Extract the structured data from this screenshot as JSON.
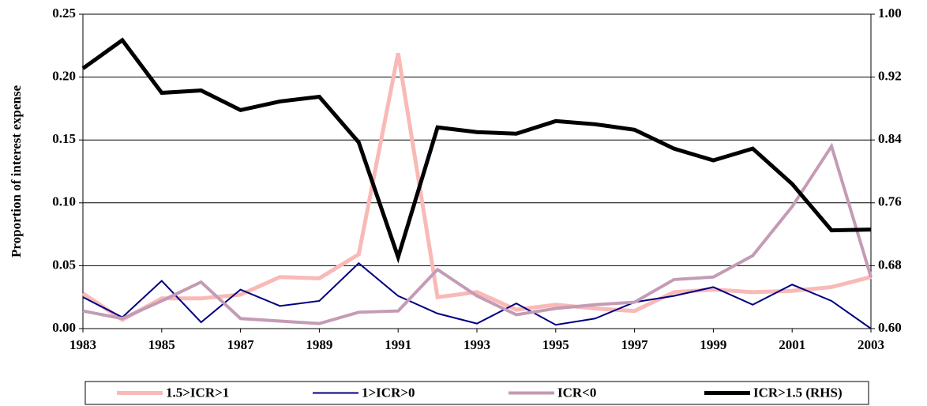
{
  "chart_data": {
    "type": "line",
    "y_label": "Proportion of interest expense",
    "x": [
      1983,
      1984,
      1985,
      1986,
      1987,
      1988,
      1989,
      1990,
      1991,
      1992,
      1993,
      1994,
      1995,
      1996,
      1997,
      1998,
      1999,
      2000,
      2001,
      2002,
      2003
    ],
    "xlim": [
      1983,
      2003
    ],
    "xticks": [
      1983,
      1985,
      1987,
      1989,
      1991,
      1993,
      1995,
      1997,
      1999,
      2001,
      2003
    ],
    "ylim": [
      0,
      0.25
    ],
    "yticks": [
      {
        "value": 0,
        "label": "0.00"
      },
      {
        "value": 0.05,
        "label": "0.05"
      },
      {
        "value": 0.1,
        "label": "0.10"
      },
      {
        "value": 0.15,
        "label": "0.15"
      },
      {
        "value": 0.2,
        "label": "0.20"
      },
      {
        "value": 0.25,
        "label": "0.25"
      }
    ],
    "y2lim": [
      0.6,
      1.0
    ],
    "y2ticks": [
      {
        "value": 0.6,
        "label": "0.60"
      },
      {
        "value": 0.68,
        "label": "0.68"
      },
      {
        "value": 0.76,
        "label": "0.76"
      },
      {
        "value": 0.84,
        "label": "0.84"
      },
      {
        "value": 0.92,
        "label": "0.92"
      },
      {
        "value": 1.0,
        "label": "1.00"
      }
    ],
    "grid": true,
    "legend": "bottom",
    "series": [
      {
        "name": "1.5>ICR>1",
        "color": "#f9b9b7",
        "width": 5,
        "values": [
          0.028,
          0.007,
          0.024,
          0.024,
          0.027,
          0.041,
          0.04,
          0.059,
          0.219,
          0.025,
          0.029,
          0.015,
          0.019,
          0.016,
          0.014,
          0.029,
          0.031,
          0.029,
          0.03,
          0.033,
          0.041
        ]
      },
      {
        "name": "1>ICR>0",
        "color": "#000080",
        "width": 2,
        "values": [
          0.025,
          0.009,
          0.038,
          0.005,
          0.031,
          0.018,
          0.022,
          0.052,
          0.026,
          0.012,
          0.004,
          0.02,
          0.003,
          0.008,
          0.021,
          0.026,
          0.033,
          0.019,
          0.035,
          0.022,
          0.0
        ]
      },
      {
        "name": "ICR<0",
        "color": "#c49bb5",
        "width": 4,
        "values": [
          0.014,
          0.008,
          0.022,
          0.037,
          0.008,
          0.006,
          0.004,
          0.013,
          0.014,
          0.047,
          0.026,
          0.011,
          0.016,
          0.019,
          0.021,
          0.039,
          0.041,
          0.058,
          0.097,
          0.145,
          0.041
        ]
      },
      {
        "name": "ICR>1.5 (RHS)",
        "color": "#000000",
        "width": 5,
        "axis": "y2",
        "values": [
          0.931,
          0.967,
          0.9,
          0.903,
          0.878,
          0.889,
          0.895,
          0.837,
          0.691,
          0.856,
          0.85,
          0.848,
          0.864,
          0.86,
          0.853,
          0.829,
          0.814,
          0.829,
          0.784,
          0.725,
          0.726
        ]
      }
    ]
  }
}
